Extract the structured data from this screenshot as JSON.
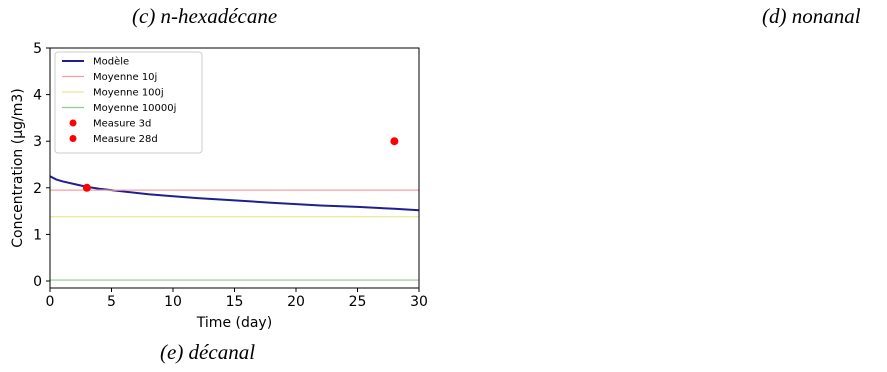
{
  "captions": {
    "top_left": "(c) n-hexadécane",
    "top_right": "(d) nonanal",
    "bottom": "(e) décanal"
  },
  "chart_data": {
    "type": "line",
    "xlabel": "Time (day)",
    "ylabel": "Concentration (µg/m3)",
    "xlim": [
      0,
      30
    ],
    "ylim": [
      -0.15,
      5
    ],
    "xticks": [
      0,
      5,
      10,
      15,
      20,
      25,
      30
    ],
    "yticks": [
      0,
      1,
      2,
      3,
      4,
      5
    ],
    "grid": false,
    "legend_position": "top-left",
    "series": [
      {
        "name": "Modèle",
        "kind": "line",
        "color": "#1f1f8f",
        "x": [
          0,
          0.5,
          1,
          2,
          3,
          4,
          5,
          6,
          8,
          10,
          12,
          15,
          18,
          20,
          22,
          25,
          28,
          30
        ],
        "y": [
          2.25,
          2.18,
          2.14,
          2.08,
          2.02,
          1.98,
          1.95,
          1.92,
          1.86,
          1.82,
          1.78,
          1.73,
          1.68,
          1.65,
          1.62,
          1.59,
          1.55,
          1.52
        ]
      },
      {
        "name": "Moyenne 10j",
        "kind": "hline",
        "color": "#f4a0a0",
        "y": 1.95
      },
      {
        "name": "Moyenne 100j",
        "kind": "hline",
        "color": "#e8e890",
        "y": 1.38
      },
      {
        "name": "Moyenne 10000j",
        "kind": "hline",
        "color": "#8fca8f",
        "y": 0.02
      },
      {
        "name": "Measure 3d",
        "kind": "scatter",
        "color": "#ff0000",
        "x": [
          3
        ],
        "y": [
          2.0
        ]
      },
      {
        "name": "Measure 28d",
        "kind": "scatter",
        "color": "#ff0000",
        "x": [
          28
        ],
        "y": [
          3.0
        ]
      }
    ]
  }
}
